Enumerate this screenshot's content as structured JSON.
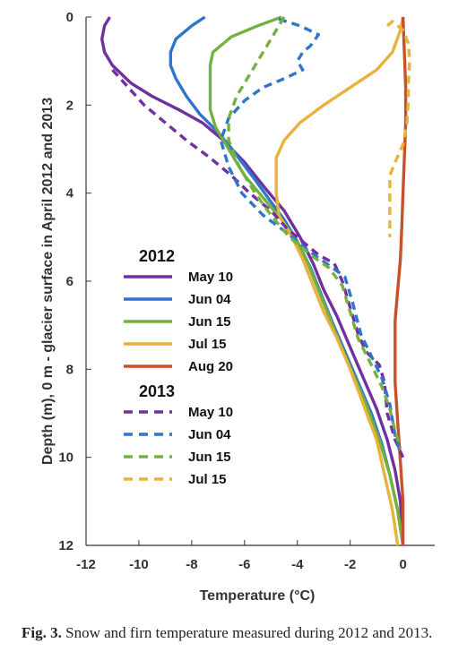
{
  "caption": {
    "label": "Fig. 3.",
    "text": "Snow and firn temperature measured during 2012 and 2013."
  },
  "chart_data": {
    "type": "line",
    "xlabel": "Temperature (°C)",
    "ylabel": "Depth (m), 0 m - glacier surface in April 2012 and 2013",
    "xlim": [
      -12,
      1.2
    ],
    "ylim": [
      0,
      12
    ],
    "y_inverted": true,
    "xticks": [
      "-12",
      "-10",
      "-8",
      "-6",
      "-4",
      "-2",
      "0"
    ],
    "yticks": [
      "0",
      "2",
      "4",
      "6",
      "8",
      "10",
      "12"
    ],
    "legend": {
      "placement": "left-middle",
      "groups": [
        "2012",
        "2013"
      ]
    },
    "series": [
      {
        "name": "May 10",
        "group": "2012",
        "style": "solid",
        "color": "#7030A0",
        "points": [
          [
            -11.1,
            0
          ],
          [
            -11.3,
            0.2
          ],
          [
            -11.4,
            0.5
          ],
          [
            -11.3,
            0.8
          ],
          [
            -11.0,
            1.1
          ],
          [
            -10.3,
            1.5
          ],
          [
            -9.5,
            1.8
          ],
          [
            -8.5,
            2.1
          ],
          [
            -7.6,
            2.4
          ],
          [
            -6.8,
            2.8
          ],
          [
            -6.0,
            3.3
          ],
          [
            -5.2,
            3.9
          ],
          [
            -4.5,
            4.4
          ],
          [
            -3.9,
            5.0
          ],
          [
            -3.4,
            5.6
          ],
          [
            -3.0,
            6.2
          ],
          [
            -2.5,
            6.8
          ],
          [
            -2.0,
            7.5
          ],
          [
            -1.5,
            8.2
          ],
          [
            -1.0,
            8.9
          ],
          [
            -0.6,
            9.6
          ],
          [
            -0.3,
            10.3
          ],
          [
            -0.1,
            11.0
          ],
          [
            0.0,
            12.0
          ]
        ]
      },
      {
        "name": "Jun 04",
        "group": "2012",
        "style": "solid",
        "color": "#2F75C9",
        "points": [
          [
            -7.5,
            0
          ],
          [
            -8.0,
            0.2
          ],
          [
            -8.6,
            0.5
          ],
          [
            -8.8,
            0.8
          ],
          [
            -8.8,
            1.1
          ],
          [
            -8.6,
            1.4
          ],
          [
            -8.2,
            1.8
          ],
          [
            -7.7,
            2.2
          ],
          [
            -7.2,
            2.5
          ],
          [
            -6.6,
            2.9
          ],
          [
            -6.1,
            3.3
          ],
          [
            -5.6,
            3.7
          ],
          [
            -5.0,
            4.2
          ],
          [
            -4.5,
            4.6
          ],
          [
            -4.0,
            5.1
          ],
          [
            -3.5,
            5.7
          ],
          [
            -3.1,
            6.3
          ],
          [
            -2.7,
            6.9
          ],
          [
            -2.2,
            7.6
          ],
          [
            -1.7,
            8.3
          ],
          [
            -1.2,
            9.0
          ],
          [
            -0.8,
            9.7
          ],
          [
            -0.5,
            10.4
          ],
          [
            -0.2,
            11.2
          ],
          [
            0.0,
            12.0
          ]
        ]
      },
      {
        "name": "Jun 15",
        "group": "2012",
        "style": "solid",
        "color": "#76B041",
        "points": [
          [
            -4.6,
            0
          ],
          [
            -5.5,
            0.2
          ],
          [
            -6.5,
            0.45
          ],
          [
            -7.2,
            0.8
          ],
          [
            -7.3,
            1.1
          ],
          [
            -7.3,
            1.6
          ],
          [
            -7.3,
            2.1
          ],
          [
            -7.1,
            2.5
          ],
          [
            -6.6,
            3.0
          ],
          [
            -6.0,
            3.6
          ],
          [
            -5.3,
            4.1
          ],
          [
            -4.6,
            4.6
          ],
          [
            -4.0,
            5.1
          ],
          [
            -3.6,
            5.6
          ],
          [
            -3.2,
            6.2
          ],
          [
            -2.8,
            6.8
          ],
          [
            -2.4,
            7.4
          ],
          [
            -1.9,
            8.1
          ],
          [
            -1.4,
            8.8
          ],
          [
            -0.9,
            9.6
          ],
          [
            -0.5,
            10.4
          ],
          [
            -0.2,
            11.2
          ],
          [
            0.0,
            12.0
          ]
        ]
      },
      {
        "name": "Jul 15",
        "group": "2012",
        "style": "solid",
        "color": "#E9B23A",
        "points": [
          [
            0.0,
            0
          ],
          [
            -0.1,
            0.3
          ],
          [
            -0.4,
            0.8
          ],
          [
            -1.0,
            1.2
          ],
          [
            -2.0,
            1.6
          ],
          [
            -3.0,
            2.0
          ],
          [
            -3.9,
            2.4
          ],
          [
            -4.5,
            2.8
          ],
          [
            -4.8,
            3.2
          ],
          [
            -4.8,
            3.6
          ],
          [
            -4.8,
            4.0
          ],
          [
            -4.7,
            4.5
          ],
          [
            -4.2,
            5.0
          ],
          [
            -3.8,
            5.5
          ],
          [
            -3.4,
            6.1
          ],
          [
            -3.0,
            6.7
          ],
          [
            -2.5,
            7.3
          ],
          [
            -2.0,
            8.0
          ],
          [
            -1.5,
            8.8
          ],
          [
            -1.0,
            9.6
          ],
          [
            -0.7,
            10.4
          ],
          [
            -0.4,
            11.2
          ],
          [
            -0.2,
            12.0
          ]
        ]
      },
      {
        "name": "Aug 20",
        "group": "2012",
        "style": "solid",
        "color": "#C5522A",
        "points": [
          [
            0.0,
            0
          ],
          [
            0.05,
            0.8
          ],
          [
            0.1,
            1.6
          ],
          [
            0.1,
            2.4
          ],
          [
            0.05,
            3.2
          ],
          [
            0.0,
            4.0
          ],
          [
            -0.05,
            4.8
          ],
          [
            -0.1,
            5.5
          ],
          [
            -0.2,
            6.2
          ],
          [
            -0.3,
            6.9
          ],
          [
            -0.3,
            7.6
          ],
          [
            -0.3,
            8.3
          ],
          [
            -0.2,
            9.2
          ],
          [
            -0.1,
            10.1
          ],
          [
            0.0,
            11.0
          ],
          [
            0.0,
            12.0
          ]
        ]
      },
      {
        "name": "May 10",
        "group": "2013",
        "style": "dashed",
        "color": "#7030A0",
        "points": [
          [
            -11.0,
            1.2
          ],
          [
            -10.4,
            1.6
          ],
          [
            -9.8,
            2.0
          ],
          [
            -9.0,
            2.4
          ],
          [
            -8.2,
            2.8
          ],
          [
            -7.3,
            3.2
          ],
          [
            -6.5,
            3.6
          ],
          [
            -5.8,
            4.0
          ],
          [
            -5.0,
            4.4
          ],
          [
            -4.4,
            4.8
          ],
          [
            -3.8,
            5.1
          ],
          [
            -3.2,
            5.4
          ],
          [
            -2.6,
            5.6
          ],
          [
            -2.3,
            6.0
          ],
          [
            -2.0,
            6.6
          ],
          [
            -1.7,
            7.2
          ],
          [
            -1.4,
            7.6
          ],
          [
            -0.9,
            7.9
          ],
          [
            -0.7,
            8.3
          ],
          [
            -0.6,
            9.0
          ],
          [
            -0.3,
            9.6
          ],
          [
            0.0,
            10.0
          ]
        ]
      },
      {
        "name": "Jun 04",
        "group": "2013",
        "style": "dashed",
        "color": "#2F75C9",
        "points": [
          [
            -4.7,
            0.05
          ],
          [
            -3.9,
            0.2
          ],
          [
            -3.2,
            0.4
          ],
          [
            -3.5,
            0.65
          ],
          [
            -3.8,
            0.8
          ],
          [
            -4.0,
            1.0
          ],
          [
            -3.8,
            1.2
          ],
          [
            -4.5,
            1.4
          ],
          [
            -5.3,
            1.6
          ],
          [
            -6.0,
            1.9
          ],
          [
            -6.6,
            2.3
          ],
          [
            -6.9,
            2.8
          ],
          [
            -6.6,
            3.4
          ],
          [
            -6.1,
            4.0
          ],
          [
            -5.3,
            4.5
          ],
          [
            -4.4,
            4.9
          ],
          [
            -3.6,
            5.3
          ],
          [
            -2.9,
            5.6
          ],
          [
            -2.2,
            5.9
          ],
          [
            -1.9,
            6.5
          ],
          [
            -1.6,
            7.2
          ],
          [
            -1.2,
            7.7
          ],
          [
            -0.8,
            8.2
          ],
          [
            -0.5,
            8.8
          ],
          [
            -0.3,
            9.5
          ],
          [
            -0.1,
            9.9
          ]
        ]
      },
      {
        "name": "Jun 15",
        "group": "2013",
        "style": "dashed",
        "color": "#76B041",
        "points": [
          [
            -4.5,
            0
          ],
          [
            -4.7,
            0.2
          ],
          [
            -5.0,
            0.5
          ],
          [
            -5.4,
            0.9
          ],
          [
            -5.9,
            1.4
          ],
          [
            -6.3,
            1.8
          ],
          [
            -6.6,
            2.3
          ],
          [
            -6.6,
            2.8
          ],
          [
            -6.2,
            3.4
          ],
          [
            -5.6,
            4.0
          ],
          [
            -5.0,
            4.5
          ],
          [
            -4.3,
            5.0
          ],
          [
            -3.5,
            5.4
          ],
          [
            -2.8,
            5.7
          ],
          [
            -2.3,
            6.1
          ],
          [
            -2.0,
            6.7
          ],
          [
            -1.7,
            7.3
          ],
          [
            -1.2,
            7.9
          ],
          [
            -0.8,
            8.4
          ],
          [
            -0.5,
            8.9
          ],
          [
            -0.3,
            9.4
          ],
          [
            -0.1,
            9.8
          ]
        ]
      },
      {
        "name": "Jul 15",
        "group": "2013",
        "style": "dashed",
        "color": "#E9B23A",
        "points": [
          [
            -0.6,
            0.2
          ],
          [
            -0.4,
            0.1
          ],
          [
            0.0,
            0.3
          ],
          [
            0.2,
            0.6
          ],
          [
            0.25,
            1.0
          ],
          [
            0.2,
            1.5
          ],
          [
            0.2,
            1.9
          ],
          [
            0.15,
            2.4
          ],
          [
            0.0,
            2.9
          ],
          [
            -0.3,
            3.3
          ],
          [
            -0.5,
            3.6
          ],
          [
            -0.5,
            4.0
          ],
          [
            -0.5,
            4.5
          ],
          [
            -0.5,
            5.0
          ]
        ]
      }
    ]
  }
}
